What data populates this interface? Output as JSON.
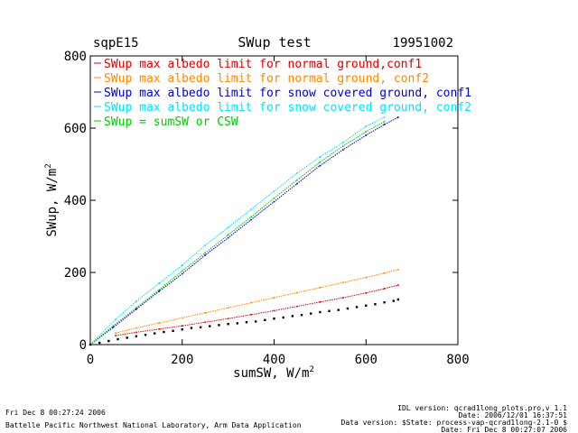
{
  "chart_data": {
    "type": "scatter",
    "site": "sqpE15",
    "title": "SWup test",
    "date": "19951002",
    "xlabel": "sumSW, W/m",
    "xlabel_sup": "2",
    "ylabel": "SWup, W/m",
    "ylabel_sup": "2",
    "xlim": [
      0,
      800
    ],
    "ylim": [
      0,
      800
    ],
    "xticks": [
      "0",
      "200",
      "400",
      "600",
      "800"
    ],
    "yticks": [
      "0",
      "200",
      "400",
      "600",
      "800"
    ],
    "grid": false,
    "legend_position": "top-left",
    "series": [
      {
        "name": "SWup max albedo limit for normal ground,conf1",
        "color": "#dd0000",
        "x": [
          55,
          100,
          150,
          200,
          250,
          300,
          350,
          400,
          450,
          500,
          550,
          600,
          640,
          670
        ],
        "y": [
          25,
          34,
          43,
          52,
          62,
          72,
          83,
          94,
          106,
          118,
          130,
          143,
          155,
          165
        ]
      },
      {
        "name": "SWup max albedo limit for normal ground, conf2",
        "color": "#ff8800",
        "x": [
          55,
          100,
          150,
          200,
          250,
          300,
          350,
          400,
          450,
          500,
          550,
          600,
          640,
          670
        ],
        "y": [
          32,
          46,
          60,
          74,
          88,
          102,
          116,
          130,
          144,
          158,
          172,
          186,
          198,
          208
        ]
      },
      {
        "name": "SWup max albedo limit for snow covered ground, conf1",
        "color": "#0000cc",
        "x": [
          0,
          50,
          100,
          150,
          200,
          250,
          300,
          350,
          400,
          450,
          500,
          550,
          600,
          640,
          670
        ],
        "y": [
          0,
          48,
          98,
          148,
          196,
          248,
          296,
          346,
          396,
          446,
          496,
          540,
          580,
          610,
          630
        ]
      },
      {
        "name": "SWup max albedo limit for snow covered ground, conf2",
        "color": "#00e5ff",
        "x": [
          0,
          55,
          100,
          150,
          200,
          250,
          300,
          350,
          400,
          450,
          500,
          550,
          600,
          640
        ],
        "y": [
          0,
          70,
          120,
          170,
          220,
          275,
          325,
          375,
          425,
          475,
          520,
          560,
          605,
          630
        ]
      },
      {
        "name": "SWup = sumSW or CSW",
        "color": "#00cc00",
        "x": [
          0,
          50,
          100,
          150,
          200,
          250,
          300,
          350,
          400,
          450,
          500,
          550,
          600,
          640
        ],
        "y": [
          0,
          52,
          102,
          152,
          204,
          254,
          304,
          354,
          406,
          456,
          506,
          550,
          590,
          618
        ]
      },
      {
        "name": "",
        "color": "#000000",
        "x": [
          0,
          20,
          40,
          60,
          80,
          100,
          120,
          140,
          160,
          180,
          200,
          220,
          240,
          260,
          280,
          300,
          320,
          340,
          360,
          380,
          400,
          420,
          440,
          460,
          480,
          500,
          520,
          540,
          560,
          580,
          600,
          620,
          640,
          660,
          670
        ],
        "y": [
          0,
          5,
          10,
          15,
          19,
          23,
          27,
          31,
          35,
          38,
          42,
          46,
          48,
          51,
          54,
          57,
          59,
          62,
          64,
          68,
          72,
          75,
          79,
          82,
          86,
          90,
          93,
          96,
          100,
          104,
          108,
          112,
          117,
          121,
          125
        ]
      }
    ]
  },
  "footer": {
    "run_time": "Fri Dec  8 00:27:24 2006",
    "institution": "Battelle Pacific Northwest National Laboratory, Arm Data Application",
    "idl_version": "IDL version: qcrad1long_plots.pro,v 1.1",
    "date_line": "Date: 2006/12/01 16:37:51",
    "data_version": "Data version: $State: process-vap-qcrad1long-2.1-0 $",
    "date_run": "Date: Fri Dec  8 00:27:07 2006"
  }
}
